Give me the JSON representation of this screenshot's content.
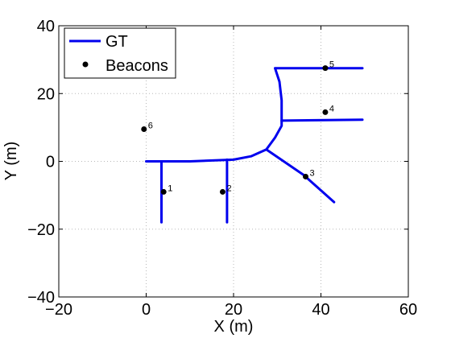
{
  "chart_data": {
    "type": "scatter",
    "xlabel": "X (m)",
    "ylabel": "Y (m)",
    "xlim": [
      -20,
      60
    ],
    "ylim": [
      -40,
      40
    ],
    "xticks": [
      -20,
      0,
      20,
      40,
      60
    ],
    "yticks": [
      -40,
      -20,
      0,
      20,
      40
    ],
    "tick_labels_x": [
      "−20",
      "0",
      "20",
      "40",
      "60"
    ],
    "tick_labels_y": [
      "−40",
      "−20",
      "0",
      "20",
      "40"
    ],
    "grid": true,
    "legend_position": "top-left",
    "series": [
      {
        "name": "GT",
        "kind": "line",
        "color": "#0000ee",
        "paths": [
          [
            [
              0,
              0
            ],
            [
              10,
              0
            ],
            [
              20,
              0.5
            ],
            [
              24,
              1.5
            ],
            [
              27.5,
              3.5
            ],
            [
              29.5,
              7
            ],
            [
              31,
              10.5
            ],
            [
              31,
              18
            ],
            [
              30.5,
              23.5
            ],
            [
              29.5,
              27.5
            ],
            [
              49.5,
              27.5
            ]
          ],
          [
            [
              31,
              12
            ],
            [
              49.5,
              12.3
            ]
          ],
          [
            [
              3.5,
              0
            ],
            [
              3.5,
              -18
            ]
          ],
          [
            [
              18.5,
              0.5
            ],
            [
              18.5,
              -18
            ]
          ],
          [
            [
              27.5,
              3.5
            ],
            [
              36,
              -4
            ],
            [
              43,
              -12
            ]
          ]
        ]
      },
      {
        "name": "Beacons",
        "kind": "points",
        "color": "#000000",
        "points": [
          {
            "x": 4,
            "y": -9,
            "label": "1"
          },
          {
            "x": 17.5,
            "y": -9,
            "label": "2"
          },
          {
            "x": 36.5,
            "y": -4.5,
            "label": "3"
          },
          {
            "x": 41,
            "y": 14.5,
            "label": "4"
          },
          {
            "x": 41,
            "y": 27.5,
            "label": "5"
          },
          {
            "x": -0.5,
            "y": 9.5,
            "label": "6"
          }
        ]
      }
    ]
  }
}
